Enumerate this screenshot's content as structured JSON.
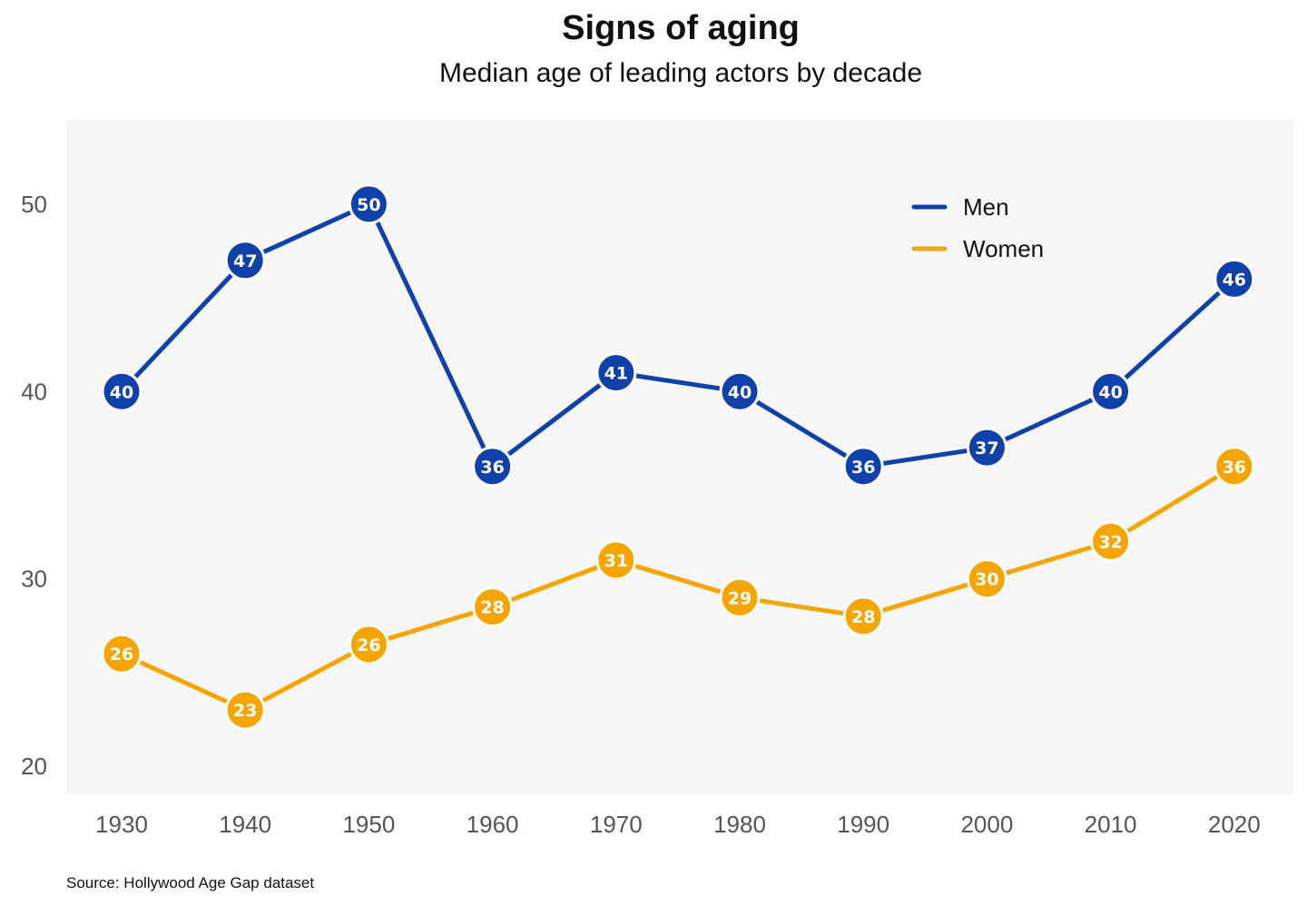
{
  "chart_data": {
    "type": "line",
    "title": "Signs of aging",
    "subtitle": "Median age of leading actors by decade",
    "source": "Source: Hollywood Age Gap dataset",
    "x": [
      "1930",
      "1940",
      "1950",
      "1960",
      "1970",
      "1980",
      "1990",
      "2000",
      "2010",
      "2020"
    ],
    "y_ticks": [
      "20",
      "30",
      "40",
      "50"
    ],
    "ylim": [
      18.5,
      54.5
    ],
    "grid": false,
    "legend_position": "top-right",
    "series": [
      {
        "name": "Men",
        "color": "#1040aa",
        "values": [
          40,
          47,
          50,
          36,
          41,
          40,
          36,
          37,
          40,
          46
        ],
        "labels": [
          "40",
          "47",
          "50",
          "36",
          "41",
          "40",
          "36",
          "37",
          "40",
          "46"
        ]
      },
      {
        "name": "Women",
        "color": "#f5a500",
        "values": [
          26,
          23,
          26.5,
          28.5,
          31,
          29,
          28,
          30,
          32,
          36
        ],
        "labels": [
          "26",
          "23",
          "26",
          "28",
          "31",
          "29",
          "28",
          "30",
          "32",
          "36"
        ]
      }
    ],
    "panel_background": "#f6f6f6"
  }
}
